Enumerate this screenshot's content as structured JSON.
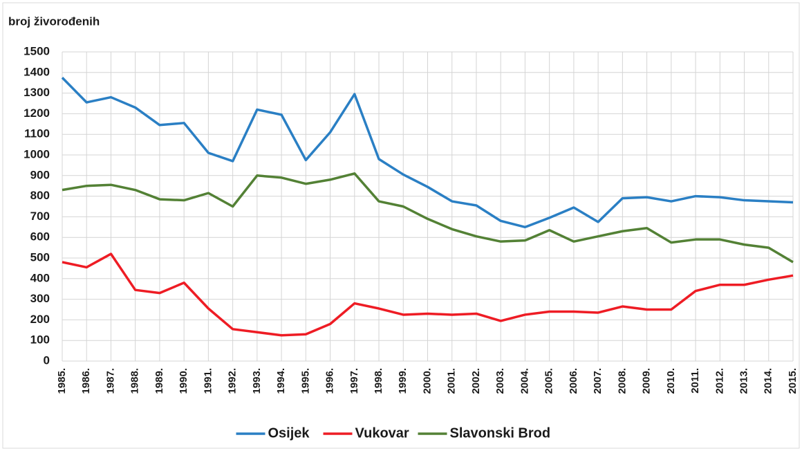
{
  "chart_data": {
    "type": "line",
    "y_label": "broj živorođenih",
    "categories": [
      "1985.",
      "1986.",
      "1987.",
      "1988.",
      "1989.",
      "1990.",
      "1991.",
      "1992.",
      "1993.",
      "1994.",
      "1995.",
      "1996.",
      "1997.",
      "1998.",
      "1999.",
      "2000.",
      "2001.",
      "2002.",
      "2003.",
      "2004.",
      "2005.",
      "2006.",
      "2007.",
      "2008.",
      "2009.",
      "2010.",
      "2011.",
      "2012.",
      "2013.",
      "2014.",
      "2015."
    ],
    "series": [
      {
        "name": "Osijek",
        "color": "#2a7fc4",
        "values": [
          1375,
          1255,
          1280,
          1230,
          1145,
          1155,
          1010,
          970,
          1220,
          1195,
          975,
          1110,
          1295,
          980,
          905,
          845,
          775,
          755,
          680,
          650,
          695,
          745,
          675,
          790,
          795,
          775,
          800,
          795,
          780,
          775,
          770
        ]
      },
      {
        "name": "Vukovar",
        "color": "#ee1c24",
        "values": [
          480,
          455,
          520,
          345,
          330,
          380,
          255,
          155,
          140,
          125,
          130,
          180,
          280,
          255,
          225,
          230,
          225,
          230,
          195,
          225,
          240,
          240,
          235,
          265,
          250,
          250,
          340,
          370,
          370,
          395,
          415
        ]
      },
      {
        "name": "Slavonski Brod",
        "color": "#538135",
        "values": [
          830,
          850,
          855,
          830,
          785,
          780,
          815,
          750,
          900,
          890,
          860,
          880,
          910,
          775,
          750,
          690,
          640,
          605,
          580,
          585,
          635,
          580,
          605,
          630,
          645,
          575,
          590,
          590,
          565,
          550,
          480
        ]
      }
    ],
    "ylim": [
      0,
      1500
    ],
    "yticks": [
      0,
      100,
      200,
      300,
      400,
      500,
      600,
      700,
      800,
      900,
      1000,
      1100,
      1200,
      1300,
      1400,
      1500
    ],
    "grid": true,
    "legend": "bottom"
  }
}
